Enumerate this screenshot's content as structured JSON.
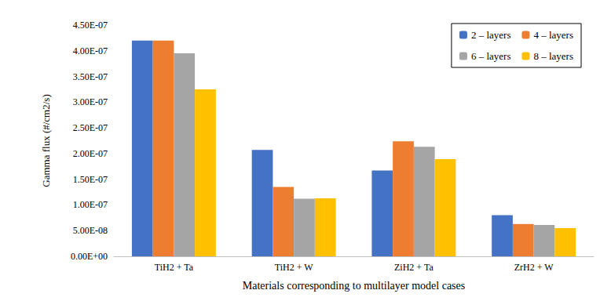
{
  "chart_data": {
    "type": "bar",
    "x_label": "Materials corresponding to multilayer model cases",
    "y_label": "Gamma flux (#/cm2/s)",
    "categories": [
      "TiH2 + Ta",
      "TiH2 + W",
      "ZiH2 + Ta",
      "ZrH2 + W"
    ],
    "series": [
      {
        "name": "2 – layers",
        "color": "#4472c4",
        "values": [
          4.2e-07,
          2.07e-07,
          1.67e-07,
          8e-08
        ]
      },
      {
        "name": "4 – layers",
        "color": "#ed7d31",
        "values": [
          4.2e-07,
          1.35e-07,
          2.24e-07,
          6.3e-08
        ]
      },
      {
        "name": "6 – layers",
        "color": "#a5a5a5",
        "values": [
          3.95e-07,
          1.12e-07,
          2.13e-07,
          6.1e-08
        ]
      },
      {
        "name": "8 – layers",
        "color": "#ffc000",
        "values": [
          3.25e-07,
          1.13e-07,
          1.89e-07,
          5.5e-08
        ]
      }
    ],
    "ylim": [
      0,
      4.5e-07
    ],
    "yticks": [
      {
        "value": 0,
        "label": "0.00E+00"
      },
      {
        "value": 5e-08,
        "label": "5.00E-08"
      },
      {
        "value": 1e-07,
        "label": "1.00E-07"
      },
      {
        "value": 1.5e-07,
        "label": "1.50E-07"
      },
      {
        "value": 2e-07,
        "label": "2.00E-07"
      },
      {
        "value": 2.5e-07,
        "label": "2.50E-07"
      },
      {
        "value": 3e-07,
        "label": "3.00E-07"
      },
      {
        "value": 3.5e-07,
        "label": "3.50E-07"
      },
      {
        "value": 4e-07,
        "label": "4.00E-07"
      },
      {
        "value": 4.5e-07,
        "label": "4.50E-07"
      }
    ],
    "grid": false,
    "legend": "upper right"
  }
}
